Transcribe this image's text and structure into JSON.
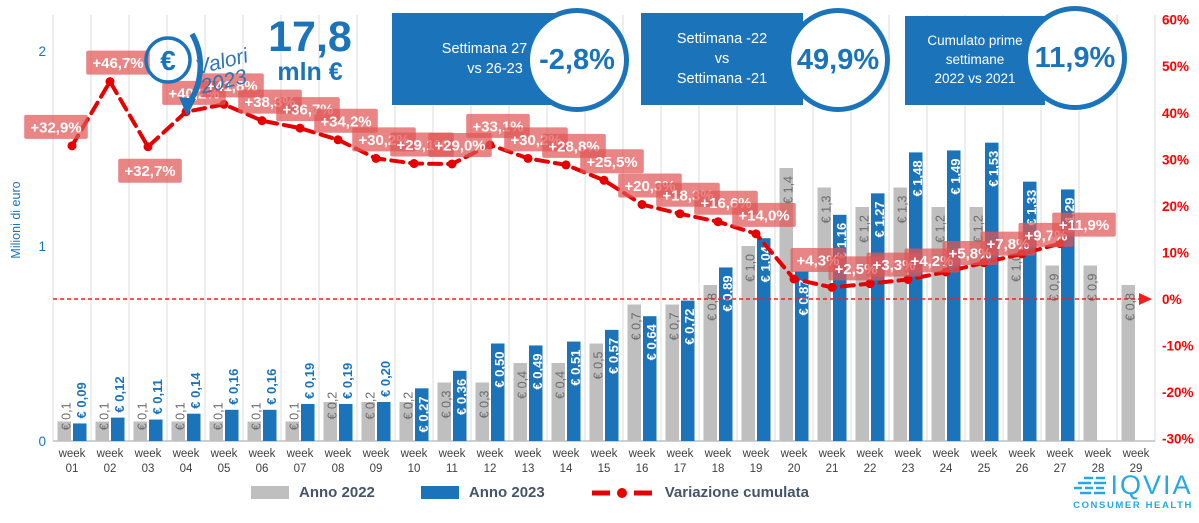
{
  "header": {
    "kpi_value": "17,8",
    "kpi_unit": "mln €",
    "valori_line1": "Valori",
    "valori_line2": "2023",
    "callouts": [
      {
        "lines": [
          "Settimana 27-23",
          "vs 26-23"
        ],
        "value": "-2,8%"
      },
      {
        "lines": [
          "Settimana -22",
          "vs",
          "Settimana -21"
        ],
        "value": "49,9%"
      },
      {
        "lines": [
          "Cumulato prime",
          "settimane",
          "2022 vs 2021"
        ],
        "value": "11,9%"
      }
    ]
  },
  "chart_data": {
    "type": "bar",
    "title": "17,8 mln €",
    "categories": [
      "week 01",
      "week 02",
      "week 03",
      "week 04",
      "week 05",
      "week 06",
      "week 07",
      "week 08",
      "week 09",
      "week 10",
      "week 11",
      "week 12",
      "week 13",
      "week 14",
      "week 15",
      "week 16",
      "week 17",
      "week 18",
      "week 19",
      "week 20",
      "week 21",
      "week 22",
      "week 23",
      "week 24",
      "week 25",
      "week 26",
      "week 27",
      "week 28",
      "week 29"
    ],
    "series": [
      {
        "name": "Anno 2022",
        "color": "#BFBFBF",
        "values": [
          0.1,
          0.1,
          0.1,
          0.1,
          0.1,
          0.1,
          0.1,
          0.2,
          0.2,
          0.2,
          0.3,
          0.3,
          0.4,
          0.4,
          0.5,
          0.7,
          0.7,
          0.8,
          1.0,
          1.4,
          1.3,
          1.2,
          1.3,
          1.2,
          1.2,
          1.0,
          0.9,
          0.9,
          0.8
        ],
        "labels": [
          "€ 0,1",
          "€ 0,1",
          "€ 0,1",
          "€ 0,1",
          "€ 0,1",
          "€ 0,1",
          "€ 0,1",
          "€ 0,2",
          "€ 0,2",
          "€ 0,2",
          "€ 0,3",
          "€ 0,3",
          "€ 0,4",
          "€ 0,4",
          "€ 0,5",
          "€ 0,7",
          "€ 0,7",
          "€ 0,8",
          "€ 1,0",
          "€ 1,4",
          "€ 1,3",
          "€ 1,2",
          "€ 1,3",
          "€ 1,2",
          "€ 1,2",
          "€ 1,0",
          "€ 0,9",
          "€ 0,9",
          "€ 0,8"
        ]
      },
      {
        "name": "Anno 2023",
        "color": "#1B74BA",
        "values": [
          0.09,
          0.12,
          0.11,
          0.14,
          0.16,
          0.16,
          0.19,
          0.19,
          0.2,
          0.27,
          0.36,
          0.5,
          0.49,
          0.51,
          0.57,
          0.64,
          0.72,
          0.89,
          1.04,
          0.87,
          1.16,
          1.27,
          1.48,
          1.49,
          1.53,
          1.33,
          1.29,
          null,
          null
        ],
        "labels": [
          "€ 0,09",
          "€ 0,12",
          "€ 0,11",
          "€ 0,14",
          "€ 0,16",
          "€ 0,16",
          "€ 0,19",
          "€ 0,19",
          "€ 0,20",
          "€ 0,27",
          "€ 0,36",
          "€ 0,50",
          "€ 0,49",
          "€ 0,51",
          "€ 0,57",
          "€ 0,64",
          "€ 0,72",
          "€ 0,89",
          "€ 1,04",
          "€ 0,87",
          "€ 1,16",
          "€ 1,27",
          "€ 1,48",
          "€ 1,49",
          "€ 1,53",
          "€ 1,33",
          "€ 1,29",
          null,
          null
        ]
      }
    ],
    "line_series": {
      "name": "Variazione cumulata",
      "color": "#E60000",
      "values_pct": [
        32.9,
        46.7,
        32.7,
        40.2,
        41.8,
        38.3,
        36.7,
        34.2,
        30.2,
        29.1,
        29.0,
        33.1,
        30.2,
        28.8,
        25.5,
        20.3,
        18.3,
        16.6,
        14.0,
        4.3,
        2.5,
        3.3,
        4.2,
        5.8,
        7.8,
        9.7,
        11.9,
        null,
        null
      ],
      "labels": [
        "+32,9%",
        "+46,7%",
        "+32,7%",
        "+40,2%",
        "+41,8%",
        "+38,3%",
        "+36,7%",
        "+34,2%",
        "+30,2%",
        "+29,1%",
        "+29,0%",
        "+33,1%",
        "+30,2%",
        "+28,8%",
        "+25,5%",
        "+20,3%",
        "+18,3%",
        "+16,6%",
        "+14,0%",
        "+4,3%",
        "+2,5%",
        "+3,3%",
        "+4,2%",
        "+5,8%",
        "+7,8%",
        "+9,7%",
        "+11,9%",
        null,
        null
      ]
    },
    "left_axis": {
      "title": "Milioni di euro",
      "ticks": [
        "0",
        "1",
        "2"
      ],
      "ylim": [
        0,
        2.2
      ]
    },
    "right_axis": {
      "ticks": [
        "60%",
        "50%",
        "40%",
        "30%",
        "20%",
        "10%",
        "0%",
        "-10%",
        "-20%",
        "-30%"
      ],
      "ylim": [
        -30,
        60
      ]
    },
    "zero_line": true,
    "grid": "vertical",
    "legend_position": "bottom"
  },
  "footer": {
    "brand": "IQVIA",
    "brand_sub": "CONSUMER HEALTH"
  },
  "colors": {
    "accent_blue": "#1B74BA",
    "bar_gray": "#BFBFBF",
    "line_red": "#E60000",
    "pct_label_bg": "#E58A8A",
    "logo_blue": "#25A9E0"
  }
}
